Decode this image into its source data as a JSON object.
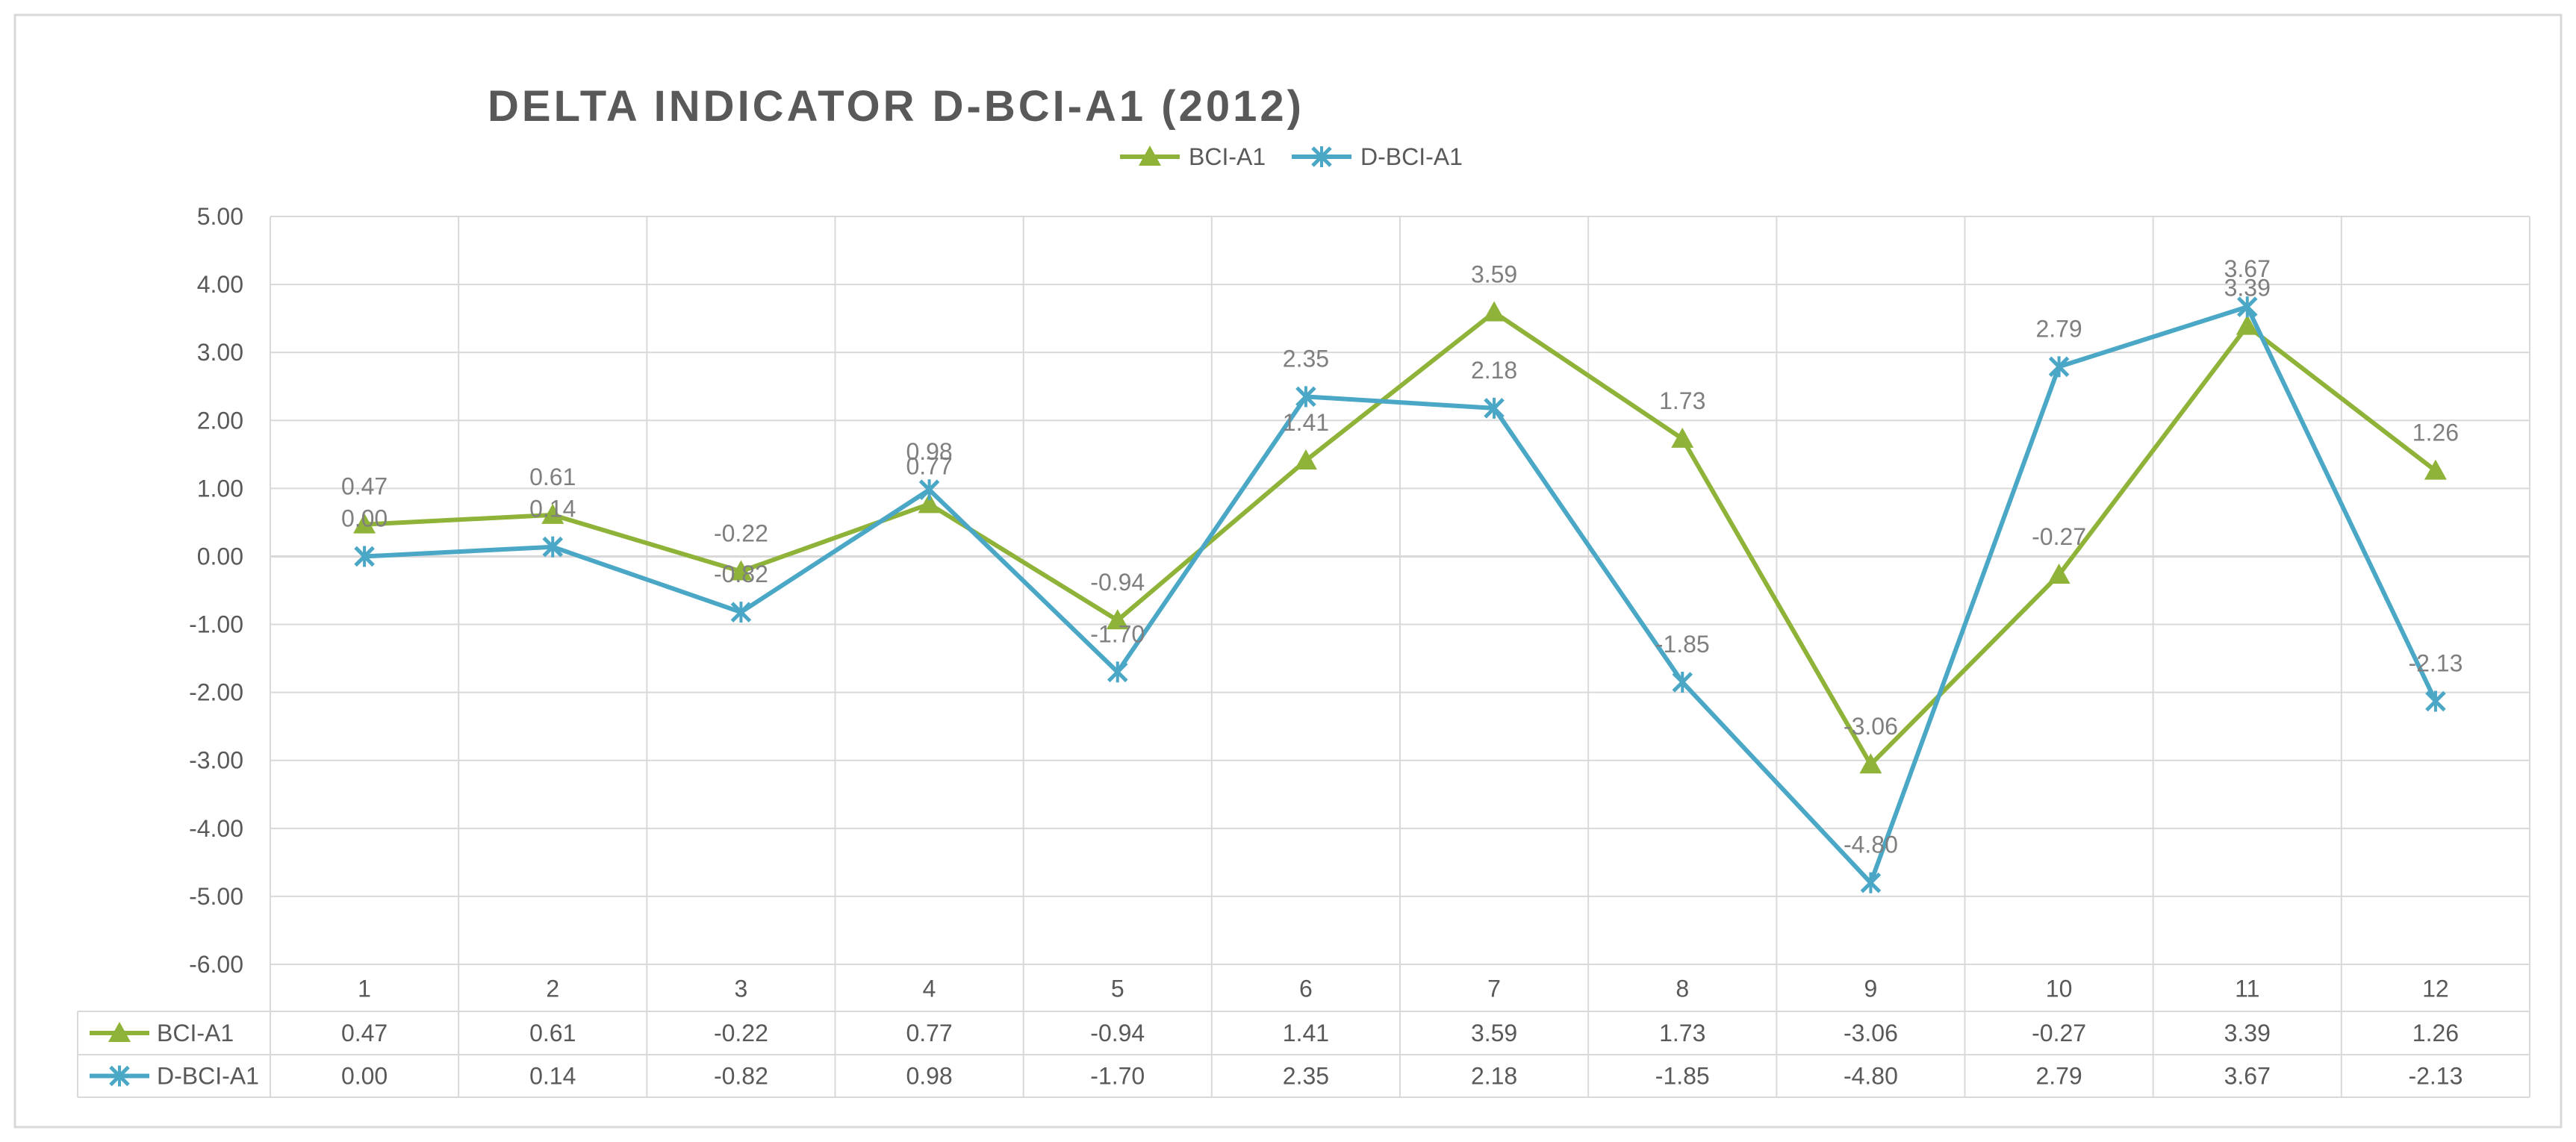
{
  "chart_data": {
    "type": "line",
    "title": "DELTA INDICATOR D-BCI-A1 (2012)",
    "categories": [
      "1",
      "2",
      "3",
      "4",
      "5",
      "6",
      "7",
      "8",
      "9",
      "10",
      "11",
      "12"
    ],
    "series": [
      {
        "name": "BCI-A1",
        "color": "#8fb339",
        "marker": "triangle",
        "values": [
          0.47,
          0.61,
          -0.22,
          0.77,
          -0.94,
          1.41,
          3.59,
          1.73,
          -3.06,
          -0.27,
          3.39,
          1.26
        ],
        "labels": [
          "0.47",
          "0.61",
          "-0.22",
          "0.77",
          "-0.94",
          "1.41",
          "3.59",
          "1.73",
          "-3.06",
          "-0.27",
          "3.39",
          "1.26"
        ]
      },
      {
        "name": "D-BCI-A1",
        "color": "#4aa7c6",
        "marker": "x",
        "values": [
          0.0,
          0.14,
          -0.82,
          0.98,
          -1.7,
          2.35,
          2.18,
          -1.85,
          -4.8,
          2.79,
          3.67,
          -2.13
        ],
        "labels": [
          "0.00",
          "0.14",
          "-0.82",
          "0.98",
          "-1.70",
          "2.35",
          "2.18",
          "-1.85",
          "-4.80",
          "2.79",
          "3.67",
          "-2.13"
        ]
      }
    ],
    "y_ticks": [
      "5.00",
      "4.00",
      "3.00",
      "2.00",
      "1.00",
      "0.00",
      "-1.00",
      "-2.00",
      "-3.00",
      "-4.00",
      "-5.00",
      "-6.00"
    ],
    "ylim": [
      -6,
      5
    ],
    "grid": true,
    "legend_position": "top-center",
    "data_table": true
  },
  "colors": {
    "grid": "#d9d9d9",
    "axis_text": "#595959",
    "title": "#595959",
    "label": "#7f7f7f"
  }
}
